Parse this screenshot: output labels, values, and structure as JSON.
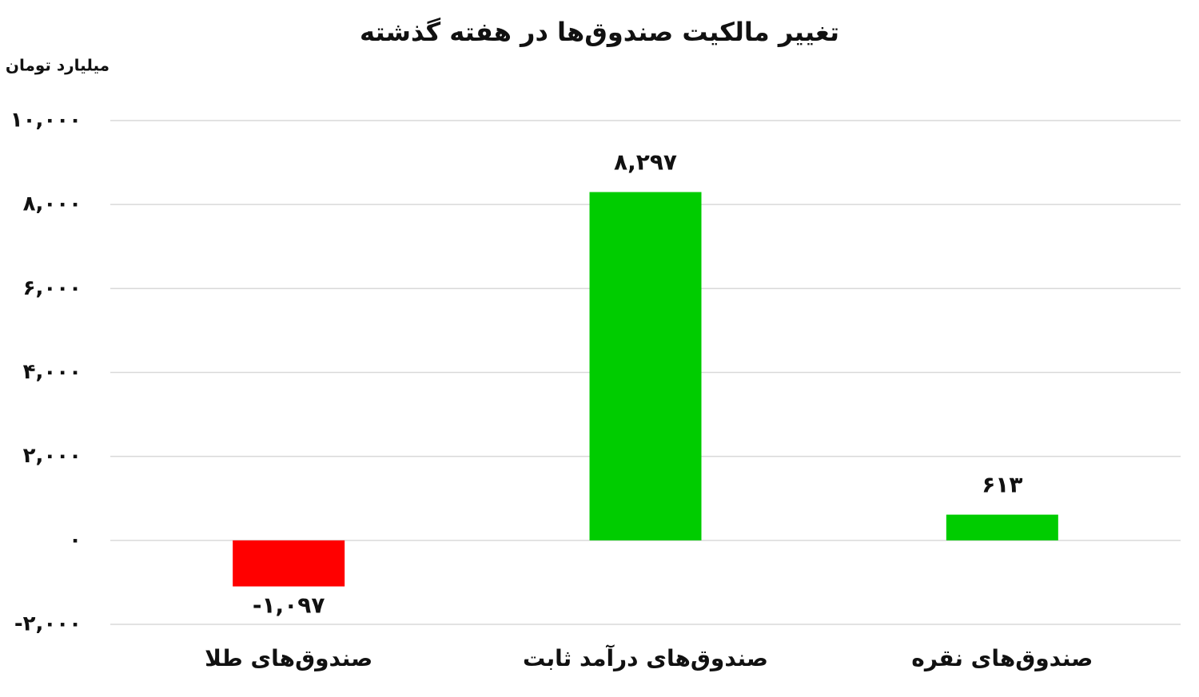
{
  "chart_data": {
    "type": "bar",
    "title": "تغییر مالکیت صندوق‌ها در هفته گذشته",
    "y_label": "میلیارد تومان",
    "categories": [
      "صندوق‌های طلا",
      "صندوق‌های درآمد ثابت",
      "صندوق‌های نقره"
    ],
    "values": [
      -1097,
      8297,
      613
    ],
    "value_labels": [
      "-۱,۰۹۷",
      "۸,۲۹۷",
      "۶۱۳"
    ],
    "colors": [
      "#ff0000",
      "#00cc00",
      "#00cc00"
    ],
    "ylim": [
      -2000,
      10000
    ],
    "yticks": [
      {
        "value": -2000,
        "label": "-۲,۰۰۰"
      },
      {
        "value": 0,
        "label": "۰"
      },
      {
        "value": 2000,
        "label": "۲,۰۰۰"
      },
      {
        "value": 4000,
        "label": "۴,۰۰۰"
      },
      {
        "value": 6000,
        "label": "۶,۰۰۰"
      },
      {
        "value": 8000,
        "label": "۸,۰۰۰"
      },
      {
        "value": 10000,
        "label": "۱۰,۰۰۰"
      }
    ],
    "grid": true
  }
}
